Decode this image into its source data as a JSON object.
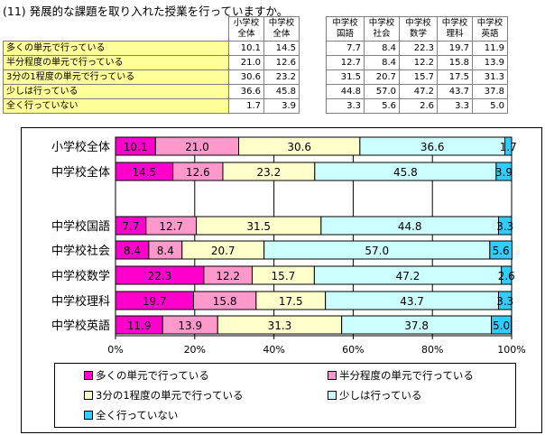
{
  "title": "(11) 発展的な課題を取り入れた授業を行っていますか。",
  "table": {
    "headers": [
      [
        "小学校",
        "全体"
      ],
      [
        "中学校",
        "全体"
      ],
      [
        "中学校",
        "国語"
      ],
      [
        "中学校",
        "社会"
      ],
      [
        "中学校",
        "数学"
      ],
      [
        "中学校",
        "理科"
      ],
      [
        "中学校",
        "英語"
      ]
    ],
    "rows": [
      {
        "label": "多くの単元で行っている",
        "values": [
          "10.1",
          "14.5",
          "7.7",
          "8.4",
          "22.3",
          "19.7",
          "11.9"
        ]
      },
      {
        "label": "半分程度の単元で行っている",
        "values": [
          "21.0",
          "12.6",
          "12.7",
          "8.4",
          "12.2",
          "15.8",
          "13.9"
        ]
      },
      {
        "label": "3分の1程度の単元で行っている",
        "values": [
          "30.6",
          "23.2",
          "31.5",
          "20.7",
          "15.7",
          "17.5",
          "31.3"
        ]
      },
      {
        "label": "少しは行っている",
        "values": [
          "36.6",
          "45.8",
          "44.8",
          "57.0",
          "47.2",
          "43.7",
          "37.8"
        ]
      },
      {
        "label": "全く行っていない",
        "values": [
          "1.7",
          "3.9",
          "3.3",
          "5.6",
          "2.6",
          "3.3",
          "5.0"
        ]
      }
    ]
  },
  "chart_data": {
    "type": "bar",
    "orientation": "horizontal-stacked-100",
    "categories": [
      "小学校全体",
      "中学校全体",
      "中学校国語",
      "中学校社会",
      "中学校数学",
      "中学校理科",
      "中学校英語"
    ],
    "series": [
      {
        "name": "多くの単元で行っている",
        "color": "#ff00cc",
        "values": [
          10.1,
          14.5,
          7.7,
          8.4,
          22.3,
          19.7,
          11.9
        ],
        "labels": [
          "10.1",
          "14.5",
          "7.7",
          "8.4",
          "22.3",
          "19.7",
          "11.9"
        ]
      },
      {
        "name": "半分程度の単元で行っている",
        "color": "#ff99cc",
        "values": [
          21.0,
          12.6,
          12.7,
          8.4,
          12.2,
          15.8,
          13.9
        ],
        "labels": [
          "21.0",
          "12.6",
          "12.7",
          "8.4",
          "12.2",
          "15.8",
          "13.9"
        ]
      },
      {
        "name": "3分の1程度の単元で行っている",
        "color": "#ffffcc",
        "values": [
          30.6,
          23.2,
          31.5,
          20.7,
          15.7,
          17.5,
          31.3
        ],
        "labels": [
          "30.6",
          "23.2",
          "31.5",
          "20.7",
          "15.7",
          "17.5",
          "31.3"
        ]
      },
      {
        "name": "少しは行っている",
        "color": "#ccffff",
        "values": [
          36.6,
          45.8,
          44.8,
          57.0,
          47.2,
          43.7,
          37.8
        ],
        "labels": [
          "36.6",
          "45.8",
          "44.8",
          "57.0",
          "47.2",
          "43.7",
          "37.8"
        ]
      },
      {
        "name": "全く行っていない",
        "color": "#33ccff",
        "values": [
          1.7,
          3.9,
          3.3,
          5.6,
          2.6,
          3.3,
          5.0
        ],
        "labels": [
          "1.7",
          "3.9",
          "3.3",
          "5.6",
          "2.6",
          "3.3",
          "5.0"
        ]
      }
    ],
    "xlim": [
      0,
      100
    ],
    "x_ticks": [
      "0%",
      "20%",
      "40%",
      "60%",
      "80%",
      "100%"
    ],
    "grid": true,
    "legend_position": "bottom"
  }
}
